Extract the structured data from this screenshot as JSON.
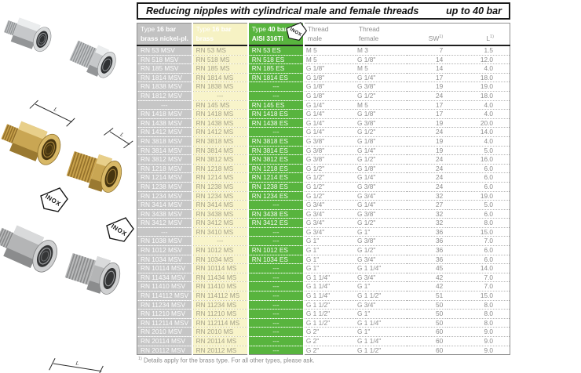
{
  "header": {
    "title": "Reducing nipples with cylindrical male and female threads",
    "pressure": "up to 40 bar"
  },
  "table": {
    "columns": [
      {
        "id": "type-16bar-nickel",
        "prefix": "Type",
        "bold": "16 bar",
        "line2": "brass nickel-pl."
      },
      {
        "id": "type-16bar-brass",
        "prefix": "Type",
        "bold": "16 bar",
        "line2": "brass"
      },
      {
        "id": "type-40bar-aisi",
        "prefix": "Type",
        "bold": "40 bar",
        "line2": "AISI 316Ti",
        "badge": "INOX"
      },
      {
        "id": "thread-male",
        "prefix": "Thread",
        "bold": "",
        "line2": "male"
      },
      {
        "id": "thread-female",
        "prefix": "Thread",
        "bold": "",
        "line2": "female"
      },
      {
        "id": "sw",
        "prefix": "SW",
        "sup": "1)"
      },
      {
        "id": "l",
        "prefix": "L",
        "sup": "1)"
      }
    ],
    "rows": [
      [
        "RN 53 MSV",
        "RN 53 MS",
        "RN 53 ES",
        "M 5",
        "M 3",
        "7",
        "1.5"
      ],
      [
        "RN 518 MSV",
        "RN 518 MS",
        "RN 518 ES",
        "M 5",
        "G 1/8\"",
        "14",
        "12.0"
      ],
      [
        "RN 185 MSV",
        "RN 185 MS",
        "RN 185 ES",
        "G 1/8\"",
        "M 5",
        "14",
        "4.0"
      ],
      [
        "RN 1814 MSV",
        "RN 1814 MS",
        "RN 1814 ES",
        "G 1/8\"",
        "G 1/4\"",
        "17",
        "18.0"
      ],
      [
        "RN 1838 MSV",
        "RN 1838 MS",
        "---",
        "G 1/8\"",
        "G 3/8\"",
        "19",
        "19.0"
      ],
      [
        "RN 1812 MSV",
        "---",
        "---",
        "G 1/8\"",
        "G 1/2\"",
        "24",
        "18.0"
      ],
      [
        "---",
        "RN 145 MS",
        "RN 145 ES",
        "G 1/4\"",
        "M 5",
        "17",
        "4.0"
      ],
      [
        "RN 1418 MSV",
        "RN 1418 MS",
        "RN 1418 ES",
        "G 1/4\"",
        "G 1/8\"",
        "17",
        "4.0"
      ],
      [
        "RN 1438 MSV",
        "RN 1438 MS",
        "RN 1438 ES",
        "G 1/4\"",
        "G 3/8\"",
        "19",
        "20.0"
      ],
      [
        "RN 1412 MSV",
        "RN 1412 MS",
        "---",
        "G 1/4\"",
        "G 1/2\"",
        "24",
        "14.0"
      ],
      [
        "RN 3818 MSV",
        "RN 3818 MS",
        "RN 3818 ES",
        "G 3/8\"",
        "G 1/8\"",
        "19",
        "4.0"
      ],
      [
        "RN 3814 MSV",
        "RN 3814 MS",
        "RN 3814 ES",
        "G 3/8\"",
        "G 1/4\"",
        "19",
        "5.0"
      ],
      [
        "RN 3812 MSV",
        "RN 3812 MS",
        "RN 3812 ES",
        "G 3/8\"",
        "G 1/2\"",
        "24",
        "16.0"
      ],
      [
        "RN 1218 MSV",
        "RN 1218 MS",
        "RN 1218 ES",
        "G 1/2\"",
        "G 1/8\"",
        "24",
        "6.0"
      ],
      [
        "RN 1214 MSV",
        "RN 1214 MS",
        "RN 1214 ES",
        "G 1/2\"",
        "G 1/4\"",
        "24",
        "6.0"
      ],
      [
        "RN 1238 MSV",
        "RN 1238 MS",
        "RN 1238 ES",
        "G 1/2\"",
        "G 3/8\"",
        "24",
        "6.0"
      ],
      [
        "RN 1234 MSV",
        "RN 1234 MS",
        "RN 1234 ES",
        "G 1/2\"",
        "G 3/4\"",
        "32",
        "19.0"
      ],
      [
        "RN 3414 MSV",
        "RN 3414 MS",
        "---",
        "G 3/4\"",
        "G 1/4\"",
        "27",
        "5.0"
      ],
      [
        "RN 3438 MSV",
        "RN 3438 MS",
        "RN 3438 ES",
        "G 3/4\"",
        "G 3/8\"",
        "32",
        "6.0"
      ],
      [
        "RN 3412 MSV",
        "RN 3412 MS",
        "RN 3412 ES",
        "G 3/4\"",
        "G 1/2\"",
        "32",
        "8.0"
      ],
      [
        "---",
        "RN 3410 MS",
        "---",
        "G 3/4\"",
        "G 1\"",
        "36",
        "15.0"
      ],
      [
        "RN 1038 MSV",
        "---",
        "---",
        "G 1\"",
        "G 3/8\"",
        "36",
        "7.0"
      ],
      [
        "RN 1012 MSV",
        "RN 1012 MS",
        "RN 1012 ES",
        "G 1\"",
        "G 1/2\"",
        "36",
        "6.0"
      ],
      [
        "RN 1034 MSV",
        "RN 1034 MS",
        "RN 1034 ES",
        "G 1\"",
        "G 3/4\"",
        "36",
        "6.0"
      ],
      [
        "RN 10114 MSV",
        "RN 10114 MS",
        "---",
        "G 1\"",
        "G 1 1/4\"",
        "45",
        "14.0"
      ],
      [
        "RN 11434 MSV",
        "RN 11434 MS",
        "---",
        "G 1 1/4\"",
        "G 3/4\"",
        "42",
        "7.0"
      ],
      [
        "RN 11410 MSV",
        "RN 11410 MS",
        "---",
        "G 1 1/4\"",
        "G 1\"",
        "42",
        "7.0"
      ],
      [
        "RN 114112 MSV",
        "RN 114112 MS",
        "---",
        "G 1 1/4\"",
        "G 1 1/2\"",
        "51",
        "15.0"
      ],
      [
        "RN 11234 MSV",
        "RN 11234 MS",
        "---",
        "G 1 1/2\"",
        "G 3/4\"",
        "50",
        "8.0"
      ],
      [
        "RN 11210 MSV",
        "RN 11210 MS",
        "---",
        "G 1 1/2\"",
        "G 1\"",
        "50",
        "8.0"
      ],
      [
        "RN 112114 MSV",
        "RN 112114 MS",
        "---",
        "G 1 1/2\"",
        "G 1 1/4\"",
        "50",
        "8.0"
      ],
      [
        "RN 2010 MSV",
        "RN 2010 MS",
        "---",
        "G 2\"",
        "G 1\"",
        "60",
        "9.0"
      ],
      [
        "RN 20114 MSV",
        "RN 20114 MS",
        "---",
        "G 2\"",
        "G 1 1/4\"",
        "60",
        "9.0"
      ],
      [
        "RN 20112 MSV",
        "RN 20112 MS",
        "---",
        "G 2\"",
        "G 1 1/2\"",
        "60",
        "9.0"
      ]
    ]
  },
  "footer": {
    "marker": "1)",
    "text": "Details apply for the brass type. For all other types, please ask."
  },
  "gallery": {
    "inox_label": "INOX",
    "dim_label": "L"
  },
  "colors": {
    "col_nickel_bg": "#c6c6c6",
    "col_brass_bg": "#f8f4ca",
    "col_inox_bg": "#58b43e"
  }
}
